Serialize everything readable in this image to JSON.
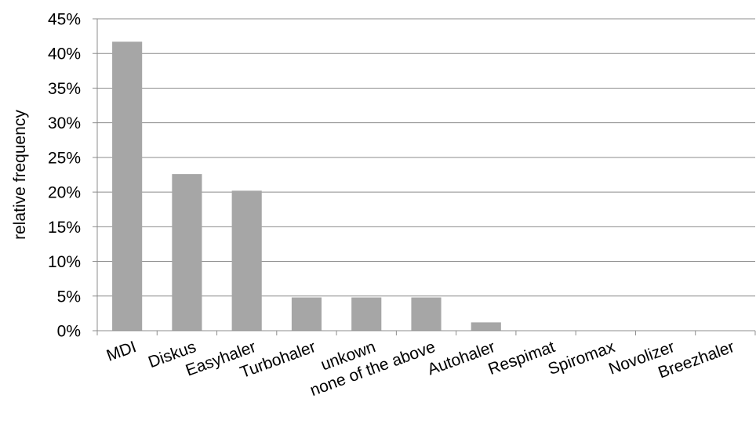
{
  "chart_data": {
    "type": "bar",
    "title": "",
    "xlabel": "",
    "ylabel": "relative frequency",
    "categories": [
      "MDI",
      "Diskus",
      "Easyhaler",
      "Turbohaler",
      "unkown",
      "none of the above",
      "Autohaler",
      "Respimat",
      "Spiromax",
      "Novolizer",
      "Breezhaler"
    ],
    "values": [
      41.7,
      22.6,
      20.2,
      4.8,
      4.8,
      4.8,
      1.2,
      0,
      0,
      0,
      0
    ],
    "ylim": [
      0,
      45
    ],
    "yticks": [
      0,
      5,
      10,
      15,
      20,
      25,
      30,
      35,
      40,
      45
    ],
    "ytick_labels": [
      "0%",
      "5%",
      "10%",
      "15%",
      "20%",
      "25%",
      "30%",
      "35%",
      "40%",
      "45%"
    ],
    "grid": true,
    "legend": "none",
    "bar_color": "#a6a6a6"
  }
}
